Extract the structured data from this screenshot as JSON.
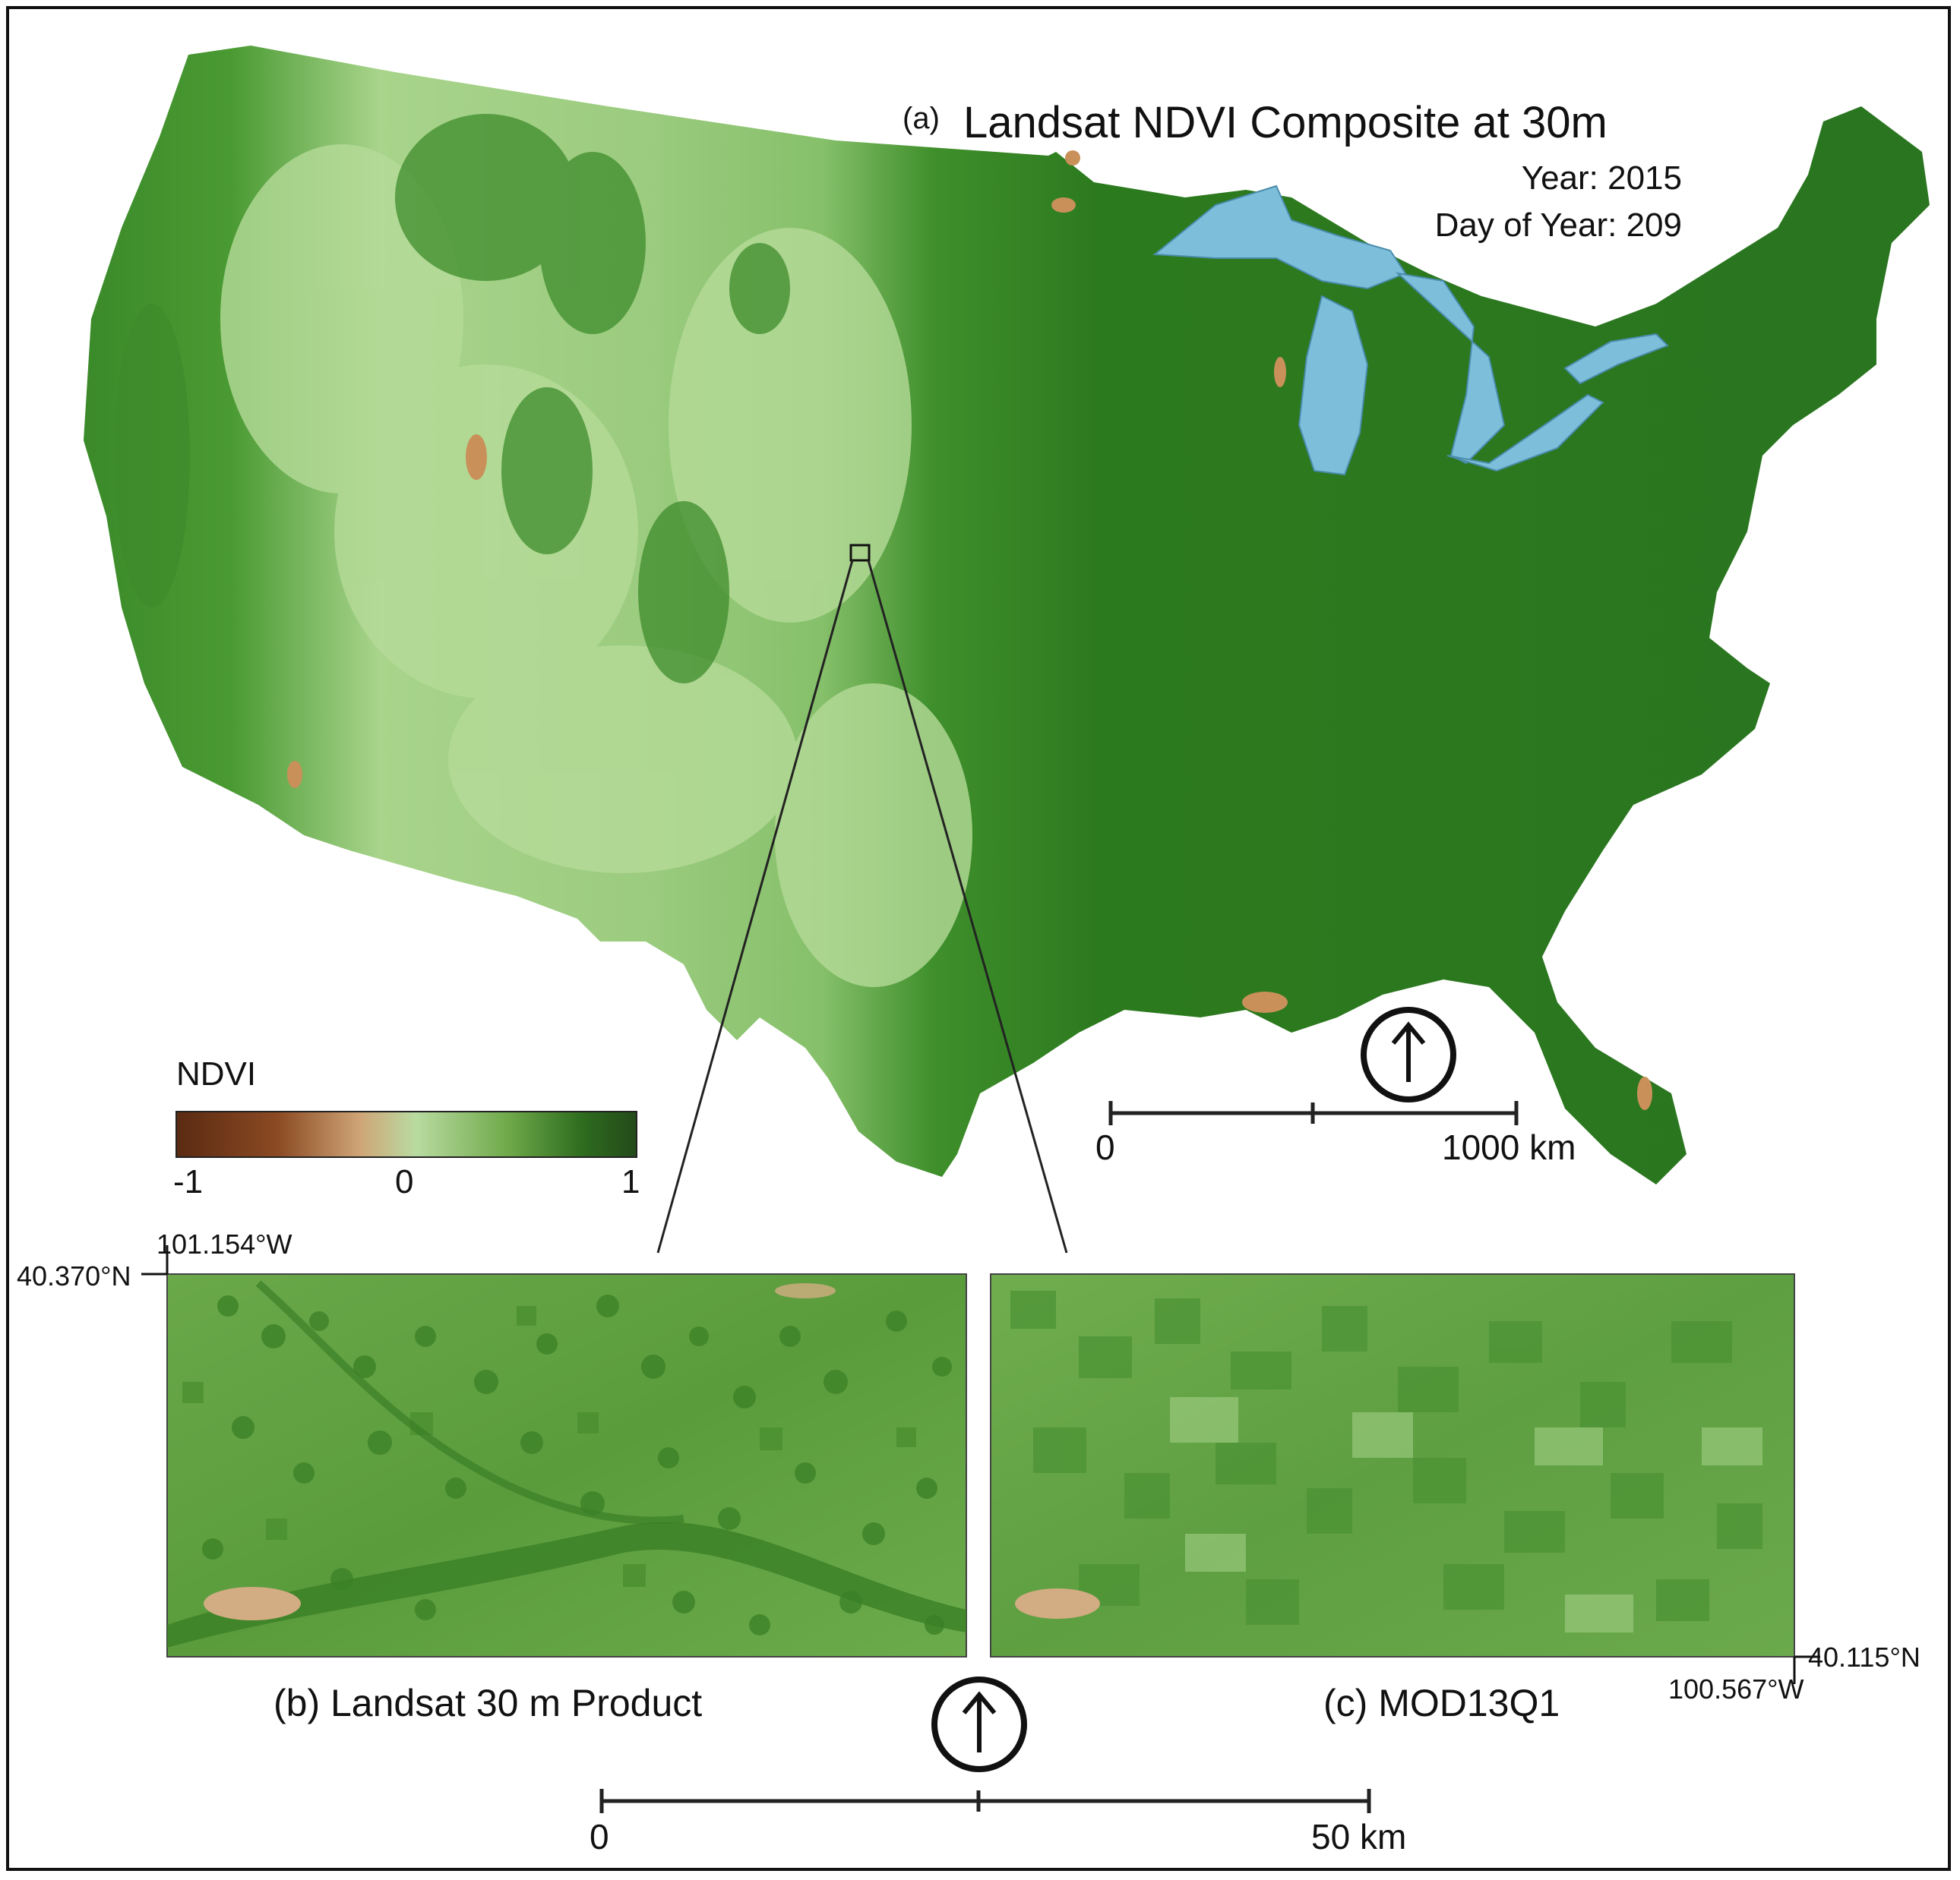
{
  "main_map": {
    "panel_letter": "(a)",
    "title": "Landsat NDVI Composite at 30m",
    "year_label": "Year: 2015",
    "doy_label": "Day of Year: 209",
    "scalebar": {
      "zero": "0",
      "end": "1000 km"
    }
  },
  "legend": {
    "title": "NDVI",
    "tick_labels": [
      "-1",
      "0",
      "1"
    ],
    "colors": [
      "#5a2a12",
      "#8b4a23",
      "#cfa577",
      "#b9dba1",
      "#6fa94a",
      "#2f6d1f",
      "#234a1a"
    ]
  },
  "insets": {
    "corner_top_left": {
      "lon": "101.154°W",
      "lat": "40.370°N"
    },
    "corner_bottom_right": {
      "lon": "100.567°W",
      "lat": "40.115°N"
    },
    "left_caption": "(b) Landsat 30 m Product",
    "right_caption": "(c) MOD13Q1",
    "scalebar": {
      "zero": "0",
      "end": "50 km"
    }
  },
  "colors": {
    "water": "#7dbfdb",
    "ndvi_low": "#c8e3a8",
    "ndvi_mid": "#5fa63f",
    "ndvi_high": "#2e7a1e",
    "bare": "#c9a077"
  }
}
